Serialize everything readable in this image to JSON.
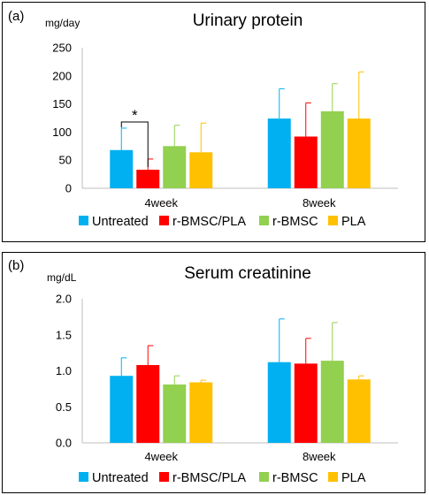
{
  "chart_data": [
    {
      "type": "bar",
      "panel_label": "(a)",
      "title": "Urinary protein",
      "ylabel": "mg/day",
      "xlabel": "",
      "ylim": [
        0,
        250
      ],
      "yticks": [
        0,
        50,
        100,
        150,
        200,
        250
      ],
      "categories": [
        "4week",
        "8week"
      ],
      "series": [
        {
          "name": "Untreated",
          "color": "#00B0F0",
          "values": [
            68,
            124
          ],
          "errors": [
            39,
            53
          ]
        },
        {
          "name": "r-BMSC/PLA",
          "color": "#FF0000",
          "values": [
            33,
            92
          ],
          "errors": [
            19,
            60
          ]
        },
        {
          "name": "r-BMSC",
          "color": "#92D050",
          "values": [
            75,
            137
          ],
          "errors": [
            37,
            49
          ]
        },
        {
          "name": "PLA",
          "color": "#FFC000",
          "values": [
            64,
            124
          ],
          "errors": [
            52,
            83
          ]
        }
      ],
      "annotation": {
        "text": "*"
      },
      "grid": false,
      "legend_position": "bottom"
    },
    {
      "type": "bar",
      "panel_label": "(b)",
      "title": "Serum creatinine",
      "ylabel": "mg/dL",
      "xlabel": "",
      "ylim": [
        0,
        2
      ],
      "yticks": [
        "0.0",
        "0.5",
        "1.0",
        "1.5",
        "2.0"
      ],
      "categories": [
        "4week",
        "8week"
      ],
      "series": [
        {
          "name": "Untreated",
          "color": "#00B0F0",
          "values": [
            0.93,
            1.12
          ],
          "errors": [
            0.25,
            0.6
          ]
        },
        {
          "name": "r-BMSC/PLA",
          "color": "#FF0000",
          "values": [
            1.08,
            1.1
          ],
          "errors": [
            0.27,
            0.35
          ]
        },
        {
          "name": "r-BMSC",
          "color": "#92D050",
          "values": [
            0.81,
            1.14
          ],
          "errors": [
            0.12,
            0.53
          ]
        },
        {
          "name": "PLA",
          "color": "#FFC000",
          "values": [
            0.84,
            0.88
          ],
          "errors": [
            0.03,
            0.05
          ]
        }
      ],
      "grid": false,
      "legend_position": "bottom"
    }
  ]
}
